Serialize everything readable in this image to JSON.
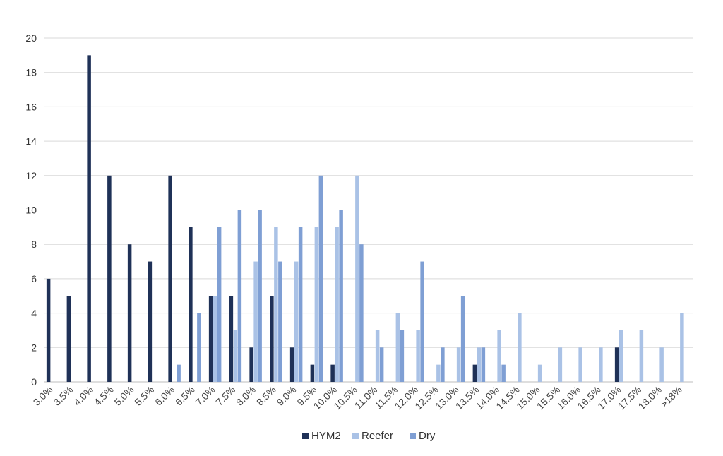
{
  "chart_data": {
    "type": "bar",
    "title": "",
    "xlabel": "",
    "ylabel": "",
    "ylim": [
      0,
      20
    ],
    "yticks": [
      0,
      2,
      4,
      6,
      8,
      10,
      12,
      14,
      16,
      18,
      20
    ],
    "grid": true,
    "legend_position": "bottom",
    "categories": [
      "3.0%",
      "3.5%",
      "4.0%",
      "4.5%",
      "5.0%",
      "5.5%",
      "6.0%",
      "6.5%",
      "7.0%",
      "7.5%",
      "8.0%",
      "8.5%",
      "9.0%",
      "9.5%",
      "10.0%",
      "10.5%",
      "11.0%",
      "11.5%",
      "12.0%",
      "12.5%",
      "13.0%",
      "13.5%",
      "14.0%",
      "14.5%",
      "15.0%",
      "15.5%",
      "16.0%",
      "16.5%",
      "17.0%",
      "17.5%",
      "18.0%",
      ">18%"
    ],
    "series": [
      {
        "name": "HYM2",
        "color": "#1f3157",
        "values": [
          6,
          5,
          19,
          12,
          8,
          7,
          12,
          9,
          5,
          5,
          2,
          5,
          2,
          1,
          1,
          0,
          0,
          0,
          0,
          0,
          0,
          1,
          0,
          0,
          0,
          0,
          0,
          0,
          2,
          0,
          0,
          0
        ]
      },
      {
        "name": "Reefer",
        "color": "#aac2e6",
        "values": [
          0,
          0,
          0,
          0,
          0,
          0,
          0,
          0,
          5,
          3,
          7,
          9,
          7,
          9,
          9,
          12,
          3,
          4,
          3,
          1,
          2,
          2,
          3,
          4,
          1,
          2,
          2,
          2,
          3,
          3,
          2,
          4
        ]
      },
      {
        "name": "Dry",
        "color": "#7f9fd4",
        "values": [
          0,
          0,
          0,
          0,
          0,
          0,
          1,
          4,
          9,
          10,
          10,
          7,
          9,
          12,
          10,
          8,
          2,
          3,
          7,
          2,
          5,
          2,
          1,
          0,
          0,
          0,
          0,
          0,
          0,
          0,
          0,
          0
        ]
      }
    ]
  }
}
